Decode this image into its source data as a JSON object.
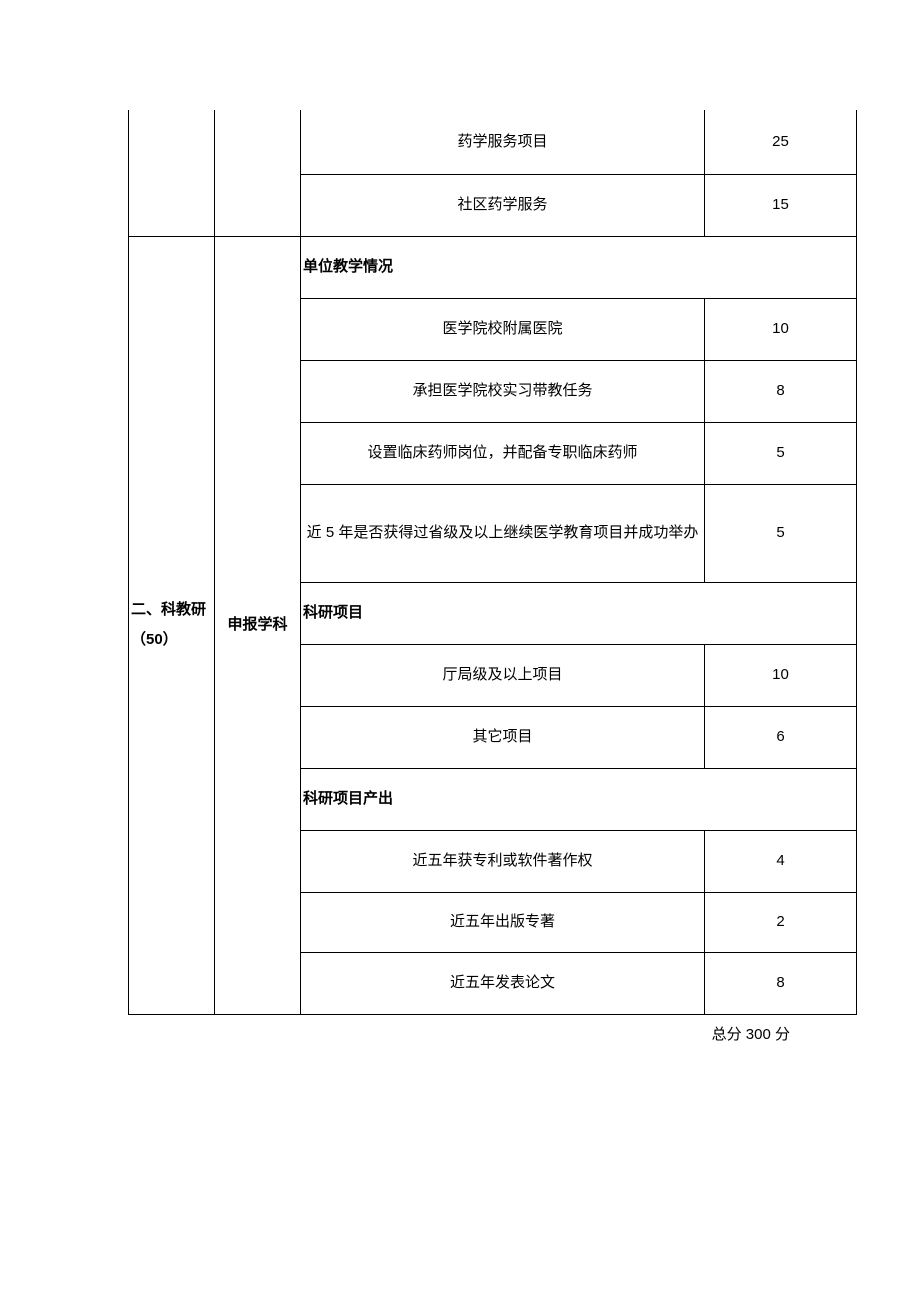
{
  "table": {
    "top_rows": [
      {
        "item": "药学服务项目",
        "score": "25"
      },
      {
        "item": "社区药学服务",
        "score": "15"
      }
    ],
    "category": {
      "label": "二、科教研（50）",
      "sub_label": "申报学科"
    },
    "sections": [
      {
        "header": "单位教学情况",
        "rows": [
          {
            "item": "医学院校附属医院",
            "score": "10"
          },
          {
            "item": "承担医学院校实习带教任务",
            "score": "8"
          },
          {
            "item": "设置临床药师岗位，并配备专职临床药师",
            "score": "5"
          },
          {
            "item": "近 5 年是否获得过省级及以上继续医学教育项目并成功举办",
            "score": "5"
          }
        ]
      },
      {
        "header": "科研项目",
        "rows": [
          {
            "item": "厅局级及以上项目",
            "score": "10"
          },
          {
            "item": "其它项目",
            "score": "6"
          }
        ]
      },
      {
        "header": "科研项目产出",
        "rows": [
          {
            "item": "近五年获专利或软件著作权",
            "score": "4"
          },
          {
            "item": "近五年出版专著",
            "score": "2"
          },
          {
            "item": "近五年发表论文",
            "score": "8"
          }
        ]
      }
    ]
  },
  "footer": "总分 300 分"
}
